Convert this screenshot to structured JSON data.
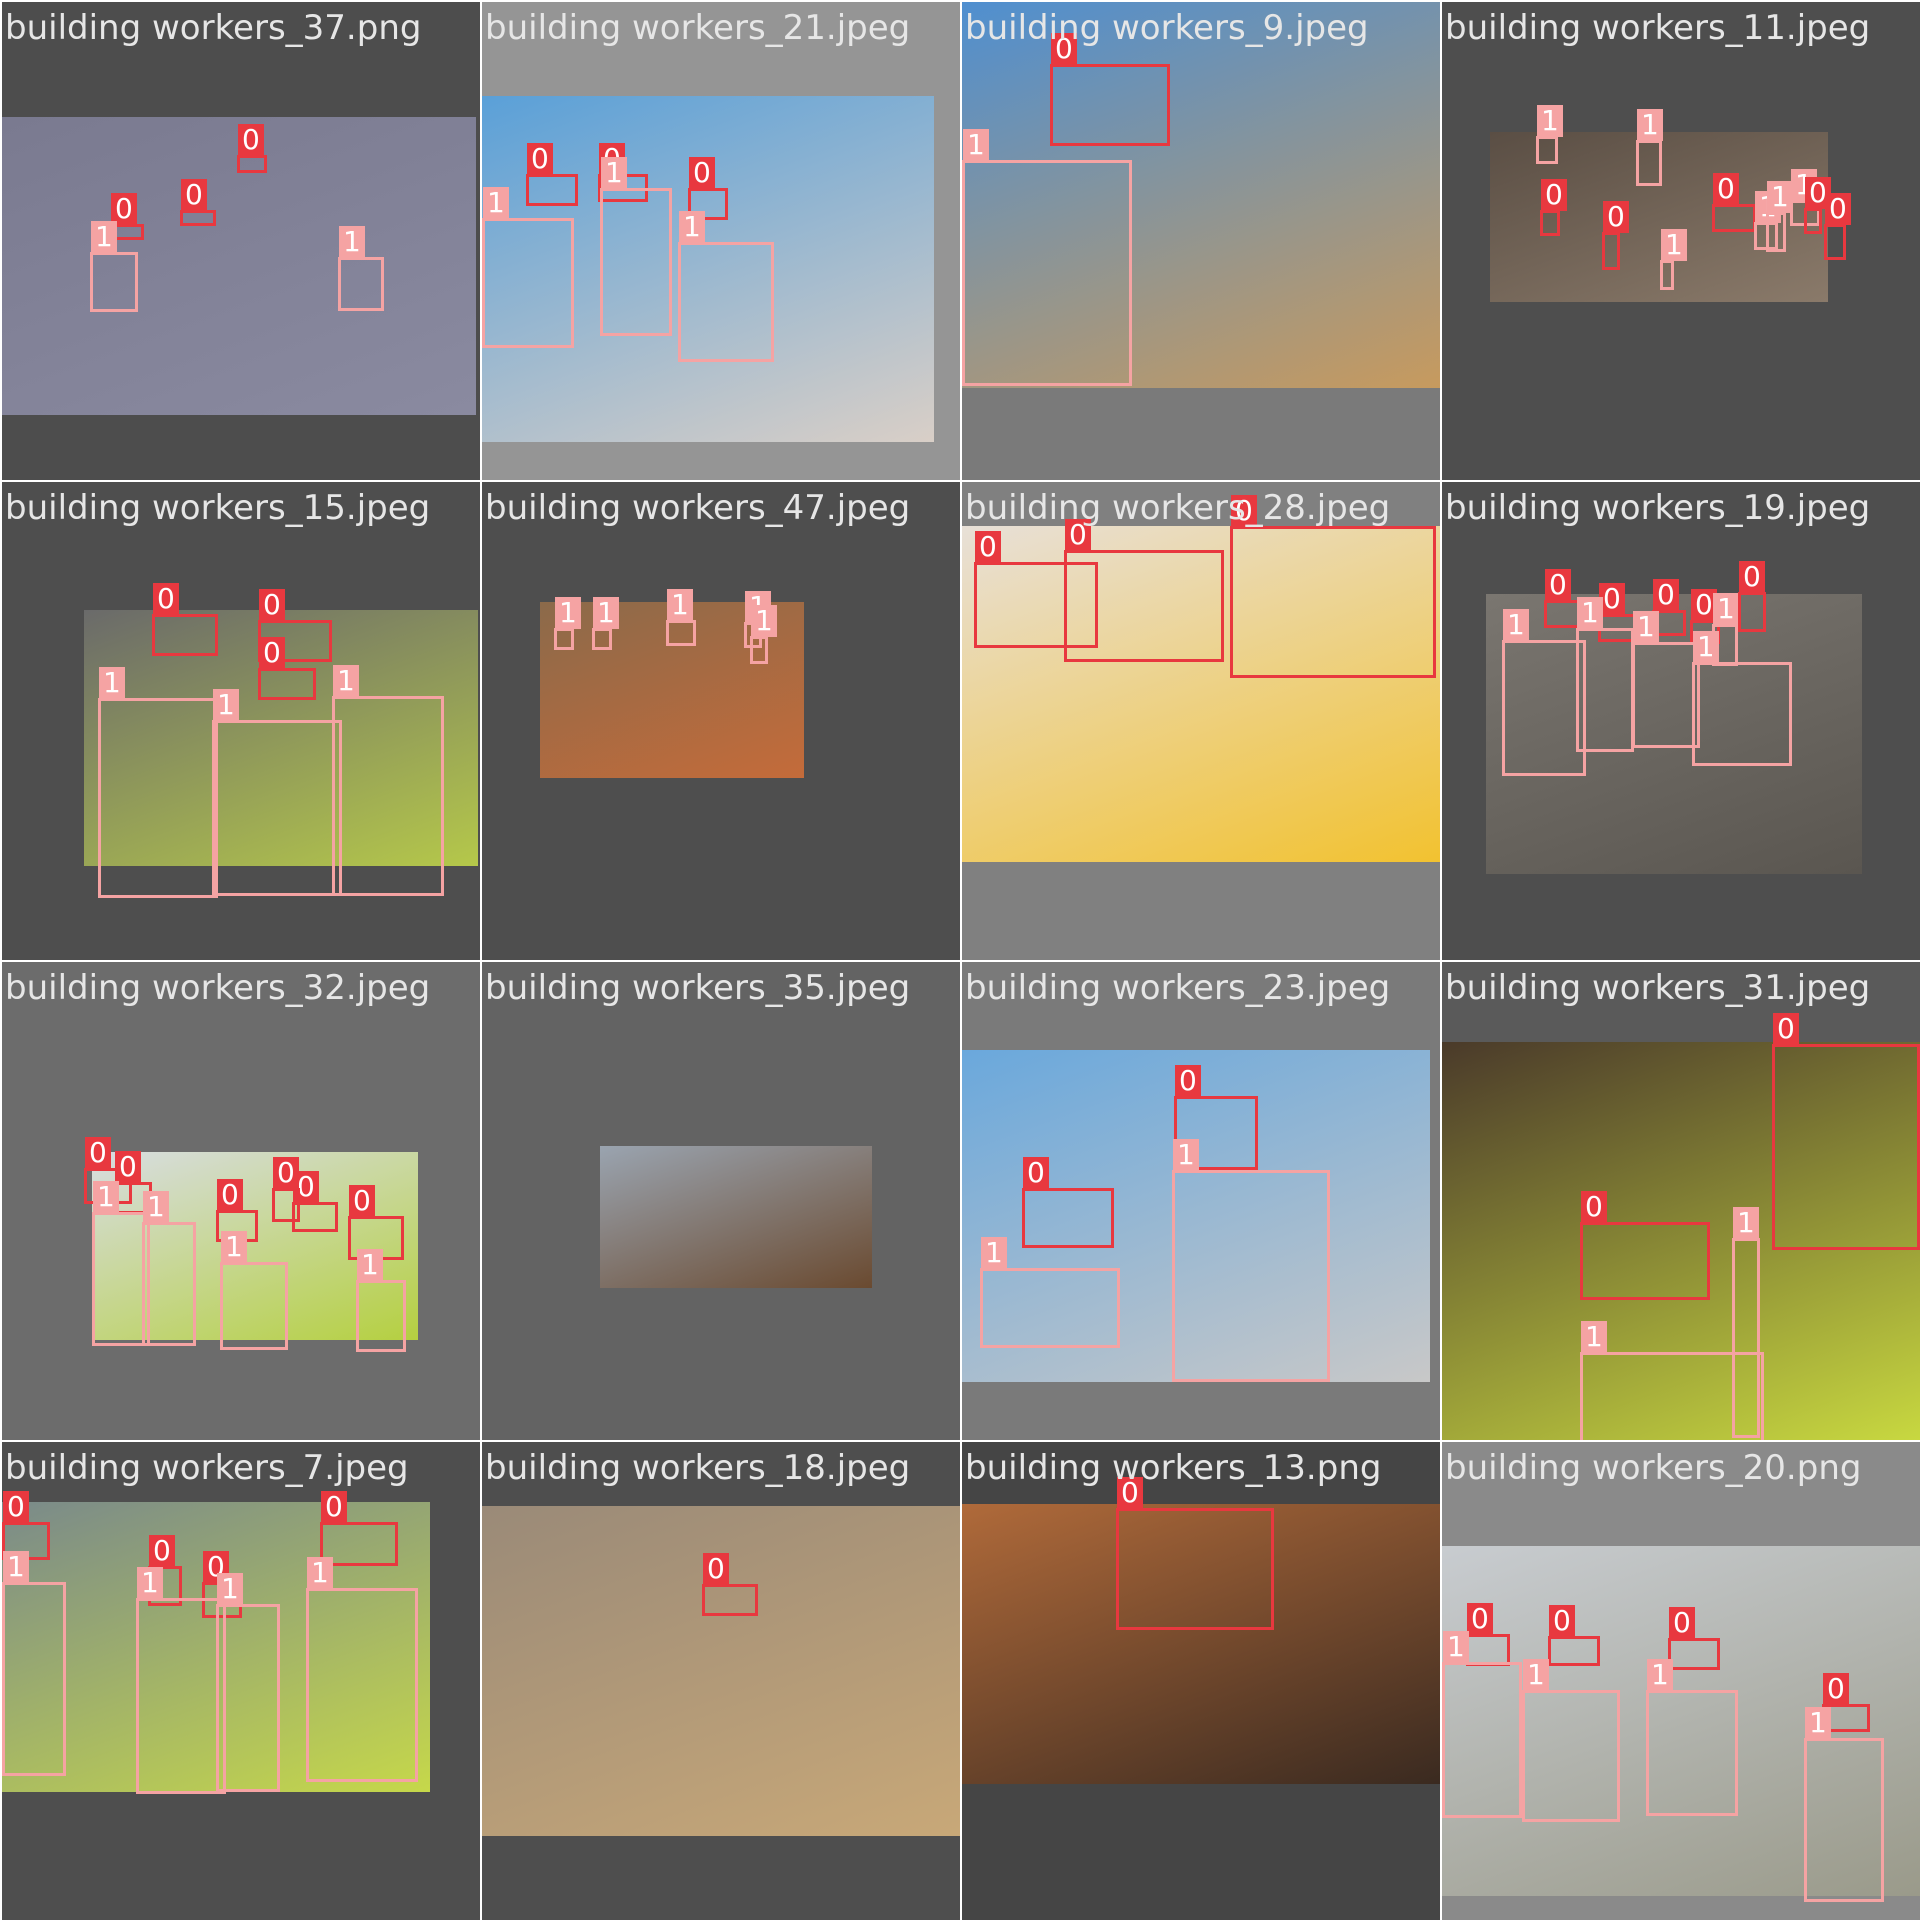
{
  "tiles": [
    {
      "title": "building workers_37.png",
      "bg": "#4d4d4d",
      "photo_colors": [
        "#7a7a90",
        "#8a8aa0"
      ],
      "labels": [
        "0",
        "0",
        "0",
        "1",
        "1"
      ]
    },
    {
      "title": "building workers_21.jpeg",
      "bg": "#959595",
      "photo_colors": [
        "#5aa0d8",
        "#d9cfc7"
      ],
      "labels": [
        "0",
        "0",
        "0",
        "1",
        "1",
        "1"
      ]
    },
    {
      "title": "building workers_9.jpeg",
      "bg": "#7a7a7a",
      "photo_colors": [
        "#4f8fd0",
        "#c79a5e"
      ],
      "labels": [
        "0",
        "1"
      ]
    },
    {
      "title": "building workers_11.jpeg",
      "bg": "#4e4e4e",
      "photo_colors": [
        "#5a4e44",
        "#8a7a6a"
      ],
      "labels": [
        "1",
        "0",
        "1",
        "0",
        "1",
        "0",
        "1",
        "1",
        "0",
        "1",
        "0"
      ]
    },
    {
      "title": "building workers_15.jpeg",
      "bg": "#4e4e4e",
      "photo_colors": [
        "#6a6a6a",
        "#b5c84a"
      ],
      "labels": [
        "0",
        "0",
        "0",
        "1",
        "1",
        "1"
      ]
    },
    {
      "title": "building workers_47.jpeg",
      "bg": "#4e4e4e",
      "photo_colors": [
        "#8b6a4a",
        "#c46b3a"
      ],
      "labels": [
        "1",
        "1",
        "1",
        "1",
        "1"
      ]
    },
    {
      "title": "building workers_28.jpeg",
      "bg": "#808080",
      "photo_colors": [
        "#e8e0d8",
        "#f2c230"
      ],
      "labels": [
        "0",
        "0",
        "0"
      ]
    },
    {
      "title": "building workers_19.jpeg",
      "bg": "#4e4e4e",
      "photo_colors": [
        "#7a7670",
        "#5a5650"
      ],
      "labels": [
        "0",
        "0",
        "0",
        "0",
        "1",
        "1",
        "1",
        "1",
        "1",
        "0"
      ]
    },
    {
      "title": "building workers_32.jpeg",
      "bg": "#6c6c6c",
      "photo_colors": [
        "#d8dde2",
        "#b5d040"
      ],
      "labels": [
        "0",
        "0",
        "0",
        "0",
        "0",
        "0",
        "1",
        "1",
        "1",
        "1"
      ]
    },
    {
      "title": "building workers_35.jpeg",
      "bg": "#636363",
      "photo_colors": [
        "#9aa4b0",
        "#6a4a30"
      ],
      "labels": []
    },
    {
      "title": "building workers_23.jpeg",
      "bg": "#7a7a7a",
      "photo_colors": [
        "#6aa8dc",
        "#c8c8c8"
      ],
      "labels": [
        "0",
        "0",
        "1",
        "1"
      ]
    },
    {
      "title": "building workers_31.jpeg",
      "bg": "#5a5a5a",
      "photo_colors": [
        "#4a3a2a",
        "#c8d840"
      ],
      "labels": [
        "0",
        "0",
        "1",
        "1"
      ]
    },
    {
      "title": "building workers_7.jpeg",
      "bg": "#4e4e4e",
      "photo_colors": [
        "#7a8a8a",
        "#c6d84a"
      ],
      "labels": [
        "0",
        "0",
        "0",
        "0",
        "1",
        "1",
        "1",
        "1"
      ]
    },
    {
      "title": "building workers_18.jpeg",
      "bg": "#4e4e4e",
      "photo_colors": [
        "#9a8a78",
        "#c8a878"
      ],
      "labels": [
        "0"
      ]
    },
    {
      "title": "building workers_13.png",
      "bg": "#454545",
      "photo_colors": [
        "#b06a3a",
        "#3a2a20"
      ],
      "labels": [
        "0"
      ]
    },
    {
      "title": "building workers_20.png",
      "bg": "#8a8a8a",
      "photo_colors": [
        "#c8ccd0",
        "#9a9a8a"
      ],
      "labels": [
        "0",
        "0",
        "0",
        "0",
        "1",
        "1",
        "1",
        "1"
      ]
    }
  ],
  "colors": {
    "class0": "#e8383f",
    "class1": "#f5a3a3",
    "title_text": "#e6e6e6"
  }
}
